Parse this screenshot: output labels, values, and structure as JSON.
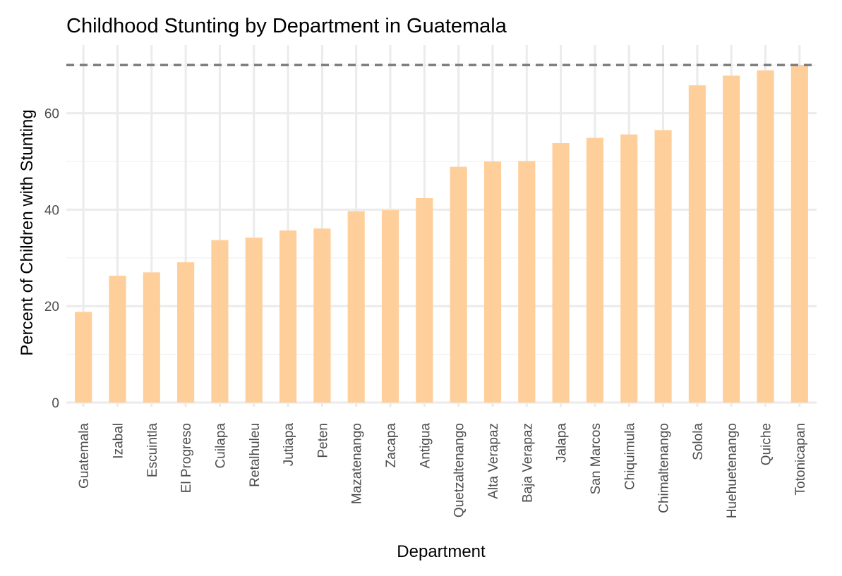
{
  "chart_data": {
    "type": "bar",
    "title": "Childhood Stunting by Department in Guatemala",
    "xlabel": "Department",
    "ylabel": "Percent of Children with Stunting",
    "categories": [
      "Guatemala",
      "Izabal",
      "Escuintla",
      "El Progreso",
      "Cuilapa",
      "Retalhuleu",
      "Jutiapa",
      "Peten",
      "Mazatenango",
      "Zacapa",
      "Antigua",
      "Quetzaltenango",
      "Alta Verapaz",
      "Baja Verapaz",
      "Jalapa",
      "San Marcos",
      "Chiquimula",
      "Chimaltenango",
      "Solola",
      "Huehuetenango",
      "Quiche",
      "Totonicapan"
    ],
    "values": [
      18.8,
      26.3,
      27.0,
      29.1,
      33.7,
      34.2,
      35.7,
      36.1,
      39.7,
      39.9,
      42.4,
      48.9,
      50.0,
      50.1,
      53.8,
      54.9,
      55.6,
      56.5,
      65.8,
      67.8,
      68.9,
      70.0
    ],
    "yticks": [
      0,
      20,
      40,
      60
    ],
    "ylim": [
      0,
      70
    ],
    "reference_line": 70,
    "grid": true,
    "colors": {
      "bar": "#FFCF9B",
      "grid_major": "#EBEBEB",
      "grid_minor": "#F3F3F3",
      "reference_line": "#7F7F7F"
    }
  }
}
